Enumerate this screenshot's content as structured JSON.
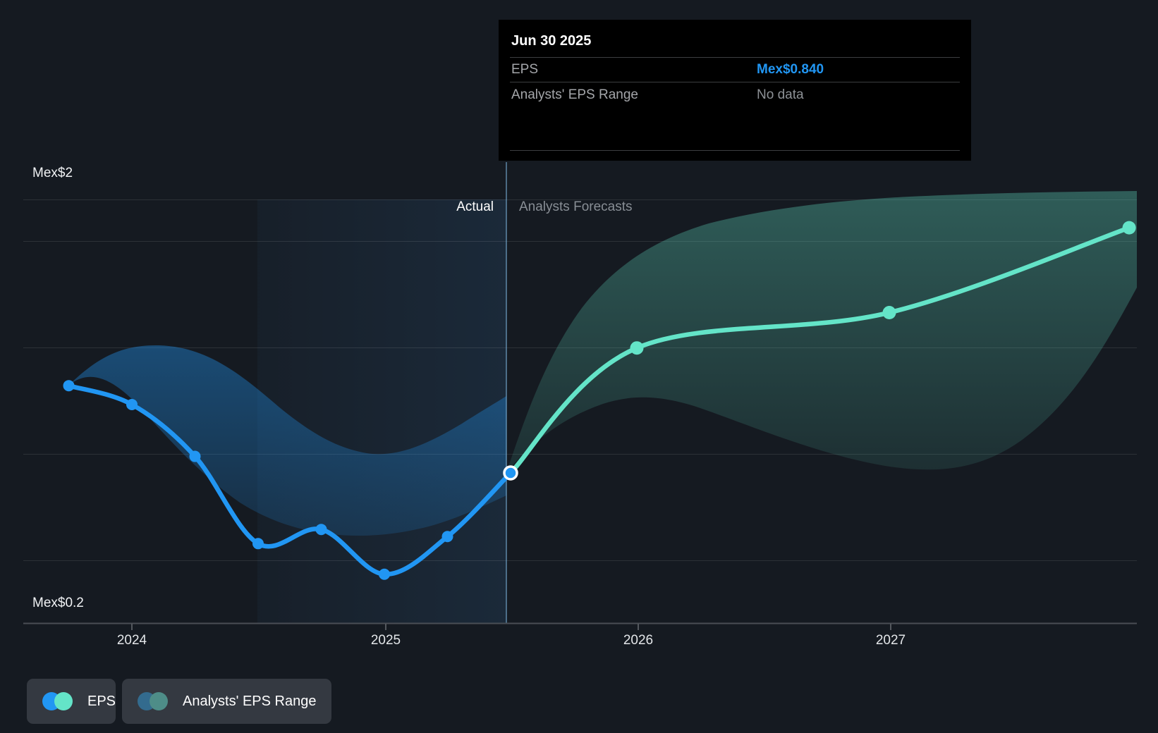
{
  "tooltip": {
    "date": "Jun 30 2025",
    "eps_label": "EPS",
    "eps_value": "Mex$0.840",
    "range_label": "Analysts' EPS Range",
    "range_value": "No data"
  },
  "labels": {
    "y_top": "Mex$2",
    "y_bottom": "Mex$0.2",
    "actual": "Actual",
    "forecast": "Analysts Forecasts"
  },
  "x_axis": {
    "ticks": [
      "2024",
      "2025",
      "2026",
      "2027"
    ]
  },
  "legend": [
    {
      "label": "EPS",
      "dot_colors": [
        "#2196f3",
        "#64e4c8"
      ]
    },
    {
      "label": "Analysts' EPS Range",
      "dot_colors": [
        "#336b8e",
        "#4e8d88"
      ]
    }
  ],
  "colors": {
    "eps_line": "#2196f3",
    "forecast_line": "#64e4c8",
    "value_blue": "#2196f3",
    "divider": "rgba(120,175,215,0.55)",
    "grid": "rgba(255,255,255,0.10)"
  },
  "chart_data": {
    "type": "line",
    "title": "EPS actual vs analysts forecast",
    "currency": "Mex$",
    "ylim": [
      0.2,
      2.0
    ],
    "y_axis_labels": [
      "Mex$2",
      "Mex$0.2"
    ],
    "x_ticks": [
      {
        "label": "2024",
        "t": 2024
      },
      {
        "label": "2025",
        "t": 2025
      },
      {
        "label": "2026",
        "t": 2026
      },
      {
        "label": "2027",
        "t": 2027
      }
    ],
    "divider": {
      "label_left": "Actual",
      "label_right": "Analysts Forecasts",
      "date": "Jun 30 2025",
      "t": 2025.5
    },
    "legend_position": "bottom-left",
    "grid": true,
    "series": [
      {
        "name": "EPS",
        "kind": "actual",
        "color": "#2196f3",
        "points": [
          {
            "date": "Sep 30 2023",
            "t": 2023.75,
            "value": 1.21
          },
          {
            "date": "Dec 31 2023",
            "t": 2024.0,
            "value": 1.13
          },
          {
            "date": "Mar 31 2024",
            "t": 2024.25,
            "value": 0.91
          },
          {
            "date": "Jun 30 2024",
            "t": 2024.5,
            "value": 0.54
          },
          {
            "date": "Sep 30 2024",
            "t": 2024.75,
            "value": 0.6
          },
          {
            "date": "Dec 31 2024",
            "t": 2025.0,
            "value": 0.41
          },
          {
            "date": "Mar 31 2025",
            "t": 2025.25,
            "value": 0.57
          },
          {
            "date": "Jun 30 2025",
            "t": 2025.5,
            "value": 0.84
          }
        ]
      },
      {
        "name": "EPS analysts forecast",
        "kind": "forecast",
        "color": "#64e4c8",
        "points": [
          {
            "date": "Jun 30 2025",
            "t": 2025.5,
            "value": 0.84
          },
          {
            "date": "Dec 31 2025",
            "t": 2026.0,
            "value": 1.37
          },
          {
            "date": "Dec 31 2026",
            "t": 2027.0,
            "value": 1.52
          },
          {
            "date": "Dec 31 2027",
            "t": 2027.95,
            "value": 1.88
          }
        ]
      }
    ]
  }
}
